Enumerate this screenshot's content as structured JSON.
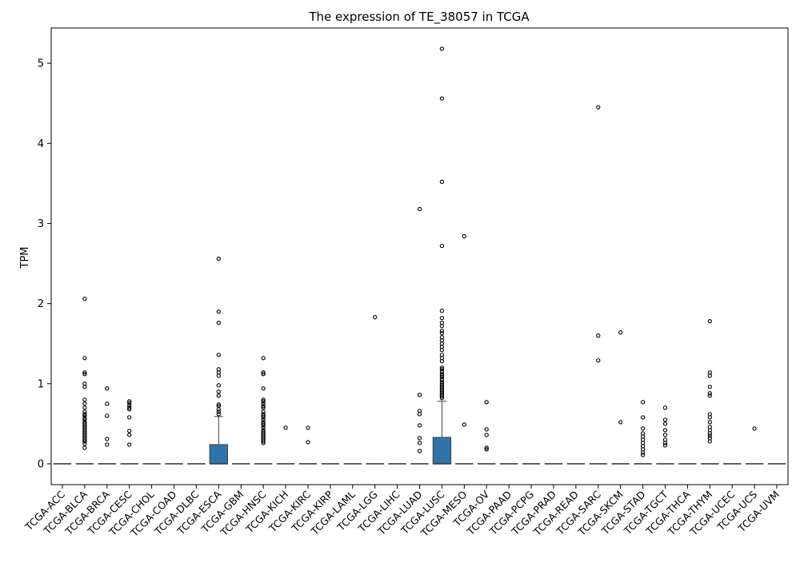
{
  "chart_data": {
    "type": "box",
    "title": "The expression of TE_38057 in TCGA",
    "xlabel": "",
    "ylabel": "TPM",
    "ylim": [
      -0.26,
      5.44
    ],
    "yticks": [
      0,
      1,
      2,
      3,
      4,
      5
    ],
    "grid": false,
    "box_color": "#2f74a8",
    "categories": [
      "TCGA-ACC",
      "TCGA-BLCA",
      "TCGA-BRCA",
      "TCGA-CESC",
      "TCGA-CHOL",
      "TCGA-COAD",
      "TCGA-DLBC",
      "TCGA-ESCA",
      "TCGA-GBM",
      "TCGA-HNSC",
      "TCGA-KICH",
      "TCGA-KIRC",
      "TCGA-KIRP",
      "TCGA-LAML",
      "TCGA-LGG",
      "TCGA-LIHC",
      "TCGA-LUAD",
      "TCGA-LUSC",
      "TCGA-MESO",
      "TCGA-OV",
      "TCGA-PAAD",
      "TCGA-PCPG",
      "TCGA-PRAD",
      "TCGA-READ",
      "TCGA-SARC",
      "TCGA-SKCM",
      "TCGA-STAD",
      "TCGA-TGCT",
      "TCGA-THCA",
      "TCGA-THYM",
      "TCGA-UCEC",
      "TCGA-UCS",
      "TCGA-UVM"
    ],
    "boxes": [
      {
        "q1": 0,
        "median": 0,
        "q3": 0,
        "whislo": 0,
        "whishi": 0,
        "fliers": []
      },
      {
        "q1": 0,
        "median": 0,
        "q3": 0,
        "whislo": 0,
        "whishi": 0,
        "fliers": [
          2.06,
          1.32,
          1.14,
          1.12,
          1.0,
          0.96,
          0.8,
          0.75,
          0.7,
          0.65,
          0.62,
          0.6,
          0.57,
          0.55,
          0.52,
          0.5,
          0.48,
          0.46,
          0.44,
          0.42,
          0.4,
          0.38,
          0.36,
          0.34,
          0.32,
          0.3,
          0.28,
          0.25,
          0.2
        ]
      },
      {
        "q1": 0,
        "median": 0,
        "q3": 0,
        "whislo": 0,
        "whishi": 0,
        "fliers": [
          0.94,
          0.75,
          0.6,
          0.31,
          0.24
        ]
      },
      {
        "q1": 0,
        "median": 0,
        "q3": 0,
        "whislo": 0,
        "whishi": 0,
        "fliers": [
          0.78,
          0.76,
          0.73,
          0.7,
          0.68,
          0.58,
          0.41,
          0.36,
          0.24
        ]
      },
      {
        "q1": 0,
        "median": 0,
        "q3": 0,
        "whislo": 0,
        "whishi": 0,
        "fliers": []
      },
      {
        "q1": 0,
        "median": 0,
        "q3": 0,
        "whislo": 0,
        "whishi": 0,
        "fliers": []
      },
      {
        "q1": 0,
        "median": 0,
        "q3": 0,
        "whislo": 0,
        "whishi": 0,
        "fliers": []
      },
      {
        "q1": 0,
        "median": 0,
        "q3": 0.24,
        "whislo": 0,
        "whishi": 0.59,
        "fliers": [
          2.56,
          1.9,
          1.76,
          1.36,
          1.18,
          1.14,
          1.1,
          0.98,
          0.9,
          0.85,
          0.74,
          0.72,
          0.68,
          0.65,
          0.62
        ]
      },
      {
        "q1": 0,
        "median": 0,
        "q3": 0,
        "whislo": 0,
        "whishi": 0,
        "fliers": []
      },
      {
        "q1": 0,
        "median": 0,
        "q3": 0,
        "whislo": 0,
        "whishi": 0,
        "fliers": [
          1.32,
          1.14,
          1.12,
          0.94,
          0.8,
          0.78,
          0.75,
          0.72,
          0.7,
          0.65,
          0.62,
          0.6,
          0.58,
          0.55,
          0.52,
          0.5,
          0.48,
          0.45,
          0.42,
          0.4,
          0.38,
          0.36,
          0.34,
          0.32,
          0.3,
          0.28,
          0.26
        ]
      },
      {
        "q1": 0,
        "median": 0,
        "q3": 0,
        "whislo": 0,
        "whishi": 0,
        "fliers": [
          0.45
        ]
      },
      {
        "q1": 0,
        "median": 0,
        "q3": 0,
        "whislo": 0,
        "whishi": 0,
        "fliers": [
          0.45,
          0.27
        ]
      },
      {
        "q1": 0,
        "median": 0,
        "q3": 0,
        "whislo": 0,
        "whishi": 0,
        "fliers": []
      },
      {
        "q1": 0,
        "median": 0,
        "q3": 0,
        "whislo": 0,
        "whishi": 0,
        "fliers": []
      },
      {
        "q1": 0,
        "median": 0,
        "q3": 0,
        "whislo": 0,
        "whishi": 0,
        "fliers": [
          1.83
        ]
      },
      {
        "q1": 0,
        "median": 0,
        "q3": 0,
        "whislo": 0,
        "whishi": 0,
        "fliers": []
      },
      {
        "q1": 0,
        "median": 0,
        "q3": 0,
        "whislo": 0,
        "whishi": 0,
        "fliers": [
          3.18,
          0.86,
          0.66,
          0.62,
          0.48,
          0.32,
          0.26,
          0.16
        ]
      },
      {
        "q1": 0,
        "median": 0,
        "q3": 0.33,
        "whislo": 0,
        "whishi": 0.78,
        "fliers": [
          5.18,
          4.56,
          3.52,
          2.72,
          1.91,
          1.82,
          1.76,
          1.72,
          1.66,
          1.63,
          1.58,
          1.54,
          1.5,
          1.46,
          1.42,
          1.36,
          1.32,
          1.28,
          1.2,
          1.18,
          1.15,
          1.12,
          1.1,
          1.08,
          1.05,
          1.02,
          1.0,
          0.98,
          0.96,
          0.94,
          0.92,
          0.9,
          0.88,
          0.86,
          0.84,
          0.82
        ]
      },
      {
        "q1": 0,
        "median": 0,
        "q3": 0,
        "whislo": 0,
        "whishi": 0,
        "fliers": [
          2.84,
          0.49
        ]
      },
      {
        "q1": 0,
        "median": 0,
        "q3": 0,
        "whislo": 0,
        "whishi": 0,
        "fliers": [
          0.77,
          0.43,
          0.36,
          0.2,
          0.18
        ]
      },
      {
        "q1": 0,
        "median": 0,
        "q3": 0,
        "whislo": 0,
        "whishi": 0,
        "fliers": []
      },
      {
        "q1": 0,
        "median": 0,
        "q3": 0,
        "whislo": 0,
        "whishi": 0,
        "fliers": []
      },
      {
        "q1": 0,
        "median": 0,
        "q3": 0,
        "whislo": 0,
        "whishi": 0,
        "fliers": []
      },
      {
        "q1": 0,
        "median": 0,
        "q3": 0,
        "whislo": 0,
        "whishi": 0,
        "fliers": []
      },
      {
        "q1": 0,
        "median": 0,
        "q3": 0,
        "whislo": 0,
        "whishi": 0,
        "fliers": [
          4.45,
          1.6,
          1.29
        ]
      },
      {
        "q1": 0,
        "median": 0,
        "q3": 0,
        "whislo": 0,
        "whishi": 0,
        "fliers": [
          1.64,
          0.52
        ]
      },
      {
        "q1": 0,
        "median": 0,
        "q3": 0,
        "whislo": 0,
        "whishi": 0,
        "fliers": [
          0.77,
          0.58,
          0.44,
          0.38,
          0.34,
          0.3,
          0.26,
          0.22,
          0.18,
          0.14,
          0.11
        ]
      },
      {
        "q1": 0,
        "median": 0,
        "q3": 0,
        "whislo": 0,
        "whishi": 0,
        "fliers": [
          0.7,
          0.55,
          0.5,
          0.42,
          0.36,
          0.3,
          0.26,
          0.23
        ]
      },
      {
        "q1": 0,
        "median": 0,
        "q3": 0,
        "whislo": 0,
        "whishi": 0,
        "fliers": []
      },
      {
        "q1": 0,
        "median": 0,
        "q3": 0,
        "whislo": 0,
        "whishi": 0,
        "fliers": [
          1.78,
          1.14,
          1.1,
          0.96,
          0.88,
          0.85,
          0.62,
          0.58,
          0.52,
          0.46,
          0.42,
          0.38,
          0.35,
          0.32,
          0.28
        ]
      },
      {
        "q1": 0,
        "median": 0,
        "q3": 0,
        "whislo": 0,
        "whishi": 0,
        "fliers": []
      },
      {
        "q1": 0,
        "median": 0,
        "q3": 0,
        "whislo": 0,
        "whishi": 0,
        "fliers": [
          0.44
        ]
      },
      {
        "q1": 0,
        "median": 0,
        "q3": 0,
        "whislo": 0,
        "whishi": 0,
        "fliers": []
      }
    ]
  }
}
